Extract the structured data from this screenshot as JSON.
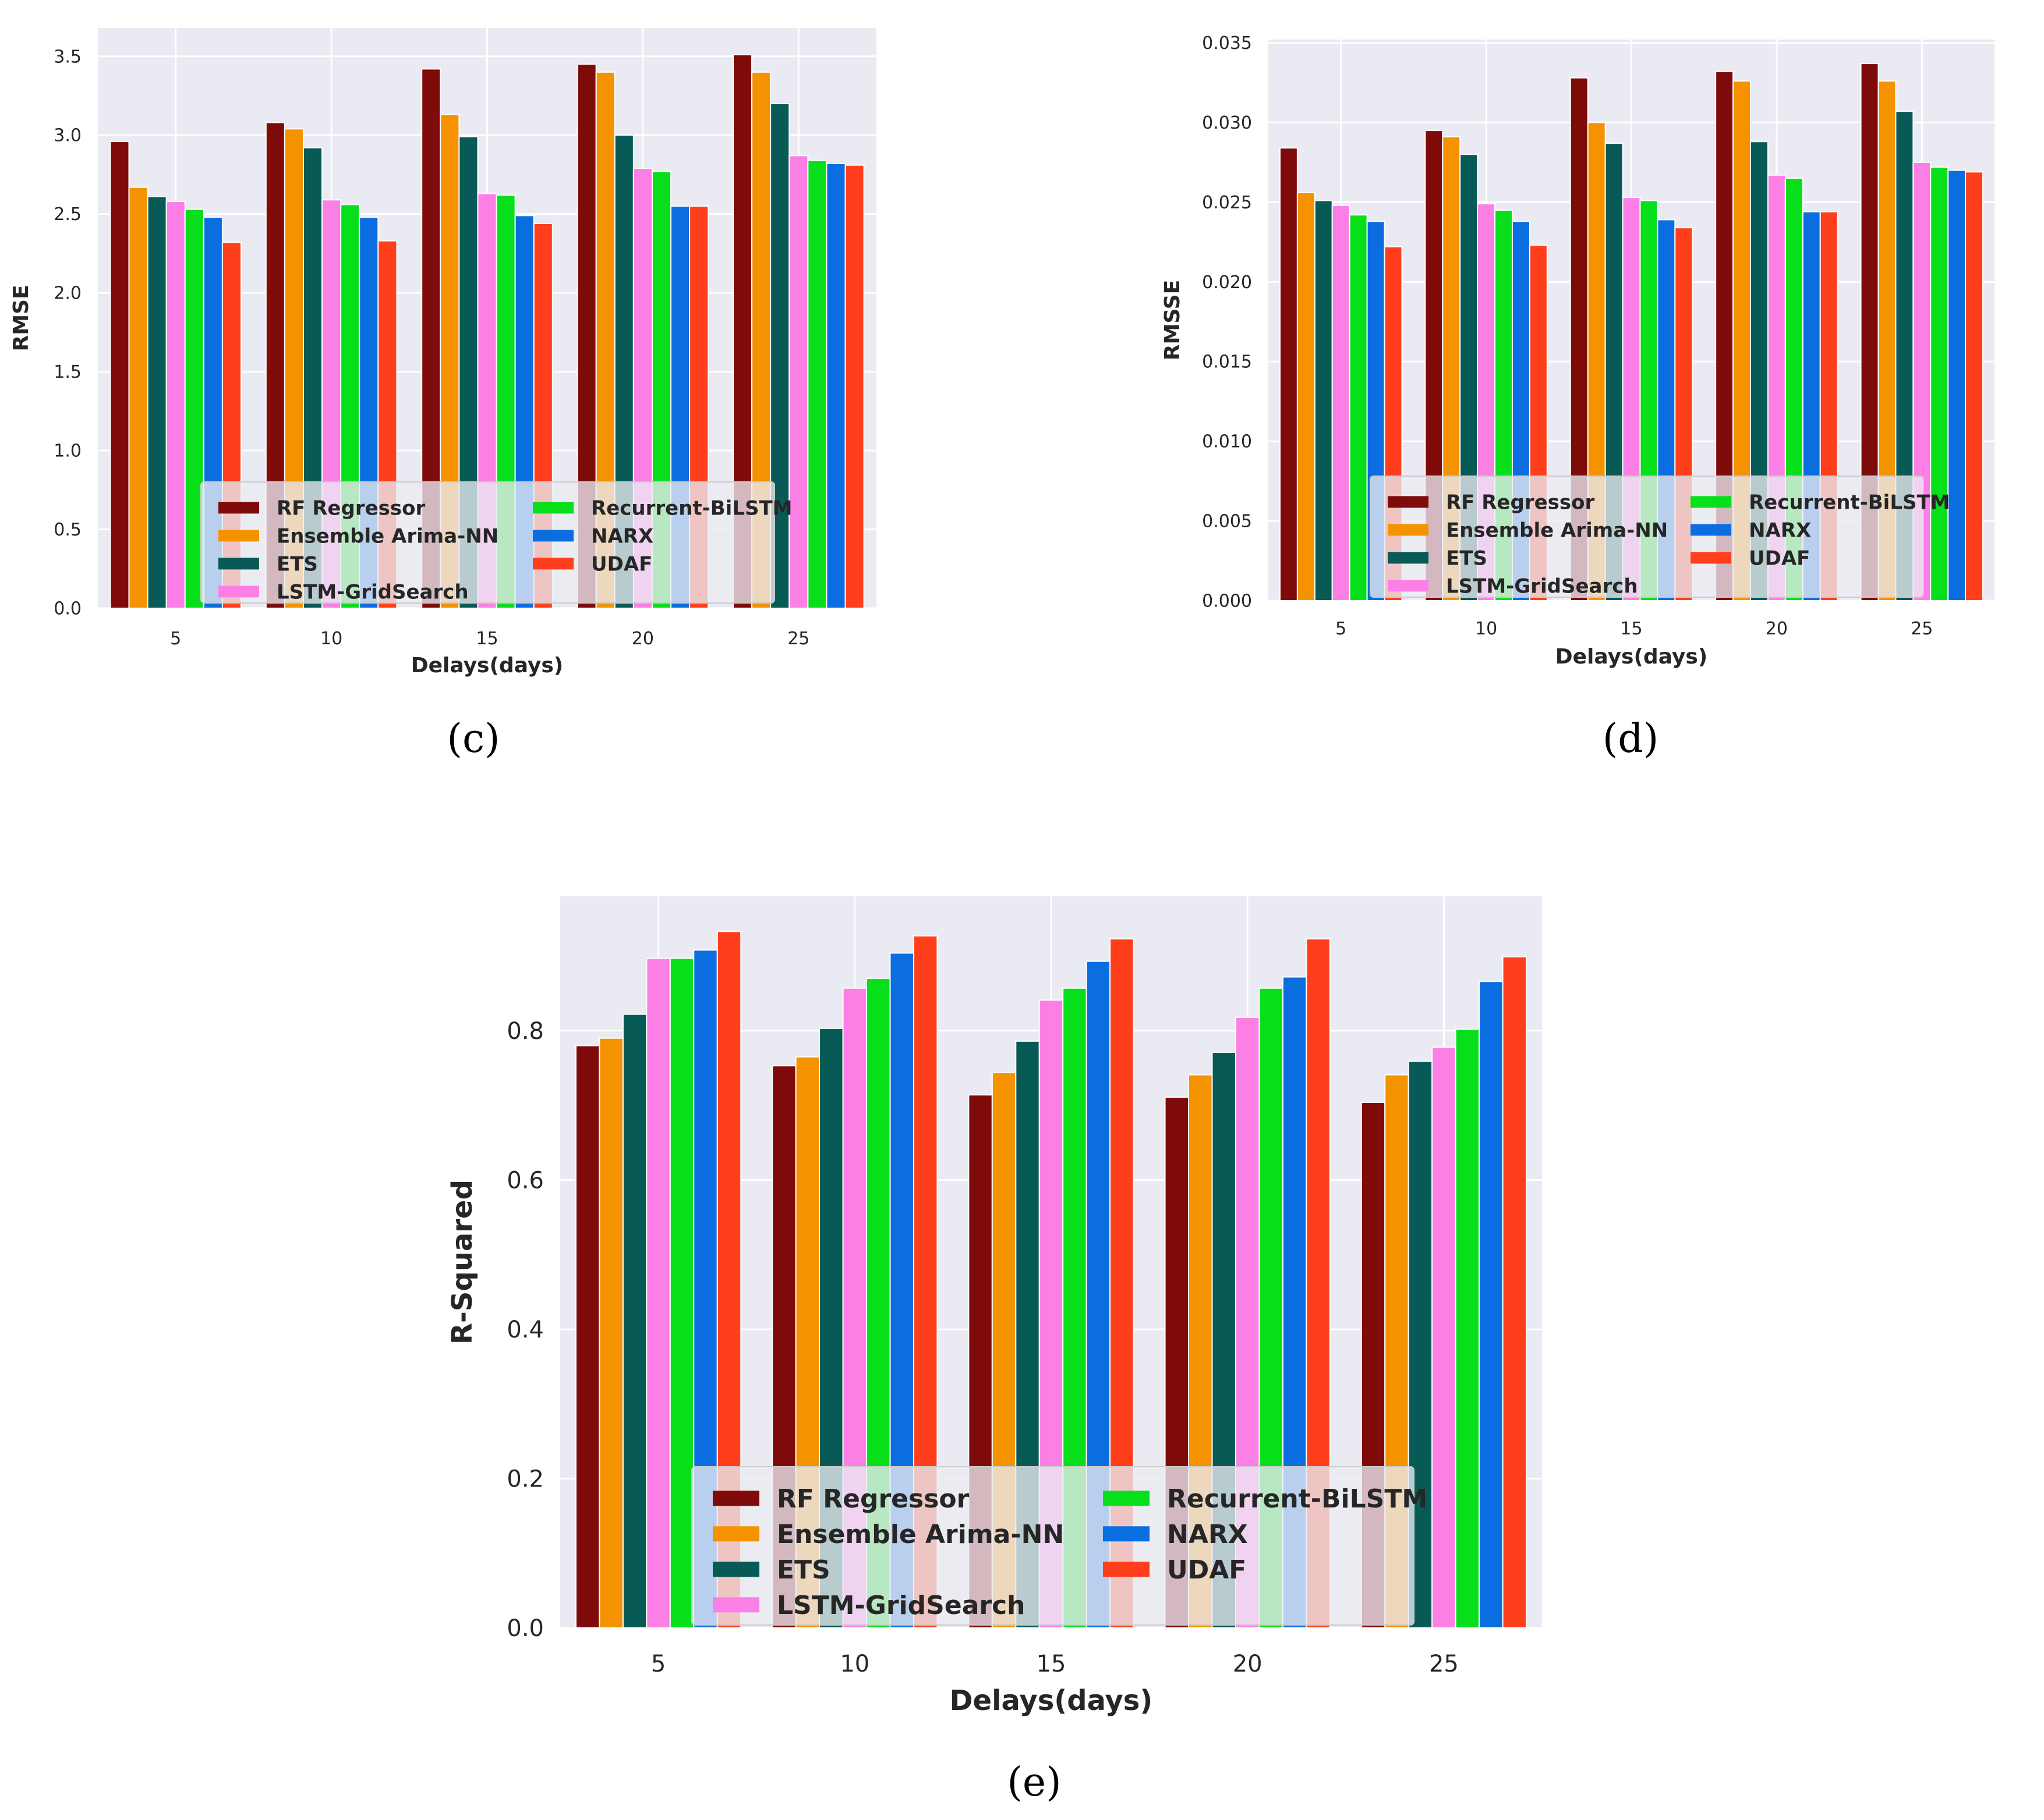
{
  "colors": {
    "RF Regressor": "#7f0a0a",
    "Ensemble Arima-NN": "#f59200",
    "ETS": "#075a55",
    "LSTM-GridSearch": "#fc7fe6",
    "Recurrent-BiLSTM": "#07df1a",
    "NARX": "#0a6ee0",
    "UDAF": "#ff3f1c",
    "background": "#eaeaf2",
    "grid": "#ffffff"
  },
  "chart_data": [
    {
      "id": "c",
      "panel_label": "(c)",
      "type": "bar",
      "title": "",
      "xlabel": "Delays(days)",
      "ylabel": "RMSE",
      "categories": [
        "5",
        "10",
        "15",
        "20",
        "25"
      ],
      "ylim": [
        0,
        3.68
      ],
      "yticks": [
        "0.0",
        "0.5",
        "1.0",
        "1.5",
        "2.0",
        "2.5",
        "3.0",
        "3.5"
      ],
      "ytick_values": [
        0,
        0.5,
        1.0,
        1.5,
        2.0,
        2.5,
        3.0,
        3.5
      ],
      "legend_position": "lower-center",
      "series": [
        {
          "name": "RF Regressor",
          "values": [
            2.96,
            3.08,
            3.42,
            3.45,
            3.51
          ]
        },
        {
          "name": "Ensemble Arima-NN",
          "values": [
            2.67,
            3.04,
            3.13,
            3.4,
            3.4
          ]
        },
        {
          "name": "ETS",
          "values": [
            2.61,
            2.92,
            2.99,
            3.0,
            3.2
          ]
        },
        {
          "name": "LSTM-GridSearch",
          "values": [
            2.58,
            2.59,
            2.63,
            2.79,
            2.87
          ]
        },
        {
          "name": "Recurrent-BiLSTM",
          "values": [
            2.53,
            2.56,
            2.62,
            2.77,
            2.84
          ]
        },
        {
          "name": "NARX",
          "values": [
            2.48,
            2.48,
            2.49,
            2.55,
            2.82
          ]
        },
        {
          "name": "UDAF",
          "values": [
            2.32,
            2.33,
            2.44,
            2.55,
            2.81
          ]
        }
      ]
    },
    {
      "id": "d",
      "panel_label": "(d)",
      "type": "bar",
      "title": "",
      "xlabel": "Delays(days)",
      "ylabel": "RMSSE",
      "categories": [
        "5",
        "10",
        "15",
        "20",
        "25"
      ],
      "ylim": [
        0,
        0.0352
      ],
      "yticks": [
        "0.000",
        "0.005",
        "0.010",
        "0.015",
        "0.020",
        "0.025",
        "0.030",
        "0.035"
      ],
      "ytick_values": [
        0,
        0.005,
        0.01,
        0.015,
        0.02,
        0.025,
        0.03,
        0.035
      ],
      "legend_position": "lower-center",
      "series": [
        {
          "name": "RF Regressor",
          "values": [
            0.0284,
            0.0295,
            0.0328,
            0.0332,
            0.0337
          ]
        },
        {
          "name": "Ensemble Arima-NN",
          "values": [
            0.0256,
            0.0291,
            0.03,
            0.0326,
            0.0326
          ]
        },
        {
          "name": "ETS",
          "values": [
            0.0251,
            0.028,
            0.0287,
            0.0288,
            0.0307
          ]
        },
        {
          "name": "LSTM-GridSearch",
          "values": [
            0.0248,
            0.0249,
            0.0253,
            0.0267,
            0.0275
          ]
        },
        {
          "name": "Recurrent-BiLSTM",
          "values": [
            0.0242,
            0.0245,
            0.0251,
            0.0265,
            0.0272
          ]
        },
        {
          "name": "NARX",
          "values": [
            0.0238,
            0.0238,
            0.0239,
            0.0244,
            0.027
          ]
        },
        {
          "name": "UDAF",
          "values": [
            0.0222,
            0.0223,
            0.0234,
            0.0244,
            0.0269
          ]
        }
      ]
    },
    {
      "id": "e",
      "panel_label": "(e)",
      "type": "bar",
      "title": "",
      "xlabel": "Delays(days)",
      "ylabel": "R-Squared",
      "categories": [
        "5",
        "10",
        "15",
        "20",
        "25"
      ],
      "ylim": [
        0,
        0.98
      ],
      "yticks": [
        "0.0",
        "0.2",
        "0.4",
        "0.6",
        "0.8"
      ],
      "ytick_values": [
        0,
        0.2,
        0.4,
        0.6,
        0.8
      ],
      "legend_position": "lower-center",
      "series": [
        {
          "name": "RF Regressor",
          "values": [
            0.78,
            0.753,
            0.714,
            0.711,
            0.704
          ]
        },
        {
          "name": "Ensemble Arima-NN",
          "values": [
            0.79,
            0.765,
            0.744,
            0.741,
            0.741
          ]
        },
        {
          "name": "ETS",
          "values": [
            0.822,
            0.803,
            0.786,
            0.771,
            0.759
          ]
        },
        {
          "name": "LSTM-GridSearch",
          "values": [
            0.897,
            0.857,
            0.841,
            0.818,
            0.778
          ]
        },
        {
          "name": "Recurrent-BiLSTM",
          "values": [
            0.897,
            0.87,
            0.857,
            0.857,
            0.802
          ]
        },
        {
          "name": "NARX",
          "values": [
            0.908,
            0.904,
            0.893,
            0.872,
            0.866
          ]
        },
        {
          "name": "UDAF",
          "values": [
            0.933,
            0.927,
            0.923,
            0.923,
            0.899
          ]
        }
      ]
    }
  ]
}
